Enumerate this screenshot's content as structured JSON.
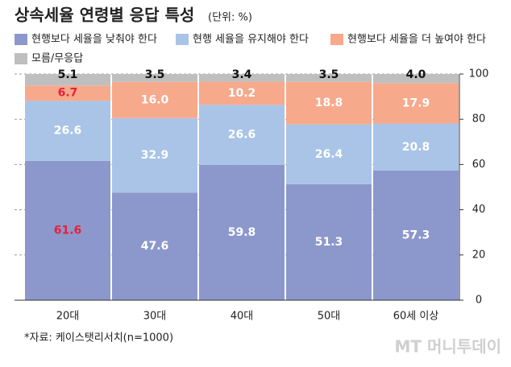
{
  "chart_data": {
    "type": "stacked_bar",
    "title": "상속세율 연령별 응답 특성",
    "subtitle": "(단위: %)",
    "categories": [
      "20대",
      "30대",
      "40대",
      "50대",
      "60세 이상"
    ],
    "series": [
      {
        "name": "현행보다 세율을 낮춰야 한다",
        "color": "#8c98cc",
        "values": [
          61.6,
          47.6,
          59.8,
          51.3,
          57.3
        ],
        "value_labels": [
          "61.6",
          "47.6",
          "59.8",
          "51.3",
          "57.3"
        ],
        "label_colors": [
          "#e8203a",
          "#ffffff",
          "#ffffff",
          "#ffffff",
          "#ffffff"
        ]
      },
      {
        "name": "현행 세율을 유지해야 한다",
        "color": "#a9c4e6",
        "values": [
          26.6,
          32.9,
          26.6,
          26.4,
          20.8
        ],
        "value_labels": [
          "26.6",
          "32.9",
          "26.6",
          "26.4",
          "20.8"
        ],
        "label_colors": [
          "#ffffff",
          "#ffffff",
          "#ffffff",
          "#ffffff",
          "#ffffff"
        ]
      },
      {
        "name": "현행보다 세율을 더 높여야 한다",
        "color": "#f7a98c",
        "values": [
          6.7,
          16.0,
          10.2,
          18.8,
          17.9
        ],
        "value_labels": [
          "6.7",
          "16.0",
          "10.2",
          "18.8",
          "17.9"
        ],
        "label_colors": [
          "#e8203a",
          "#ffffff",
          "#ffffff",
          "#ffffff",
          "#ffffff"
        ]
      },
      {
        "name": "모름/무응답",
        "color": "#bfbfbf",
        "values": [
          5.1,
          3.5,
          3.4,
          3.5,
          4.0
        ],
        "value_labels": [
          "5.1",
          "3.5",
          "3.4",
          "3.5",
          "4.0"
        ],
        "label_colors": [
          "#111111",
          "#111111",
          "#111111",
          "#111111",
          "#111111"
        ]
      }
    ],
    "ylim": [
      0,
      100
    ],
    "yticks": [
      0,
      20,
      40,
      60,
      80,
      100
    ],
    "grid": true,
    "source": "*자료: 케이스탯리서치(n=1000)",
    "watermark": "MT 머니투데이"
  }
}
